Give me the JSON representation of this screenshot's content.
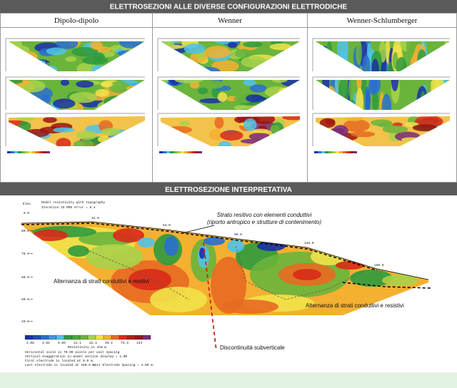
{
  "header": {
    "title": "ELETTROSEZIONI ALLE DIVERSE CONFIGURAZIONI ELETTRODICHE",
    "columns": [
      "Dipolo-dipolo",
      "Wenner",
      "Wenner-Schlumberger"
    ]
  },
  "section": {
    "title": "ELETTROSEZIONE INTERPRETATIVA",
    "plot_title": "Model resistivity with topography",
    "iteration": "Iteration 15 RMS error = 8.4",
    "y_label": "Elev.",
    "elevations": [
      "80.0",
      "70.0",
      "60.0",
      "50.0",
      "40.0"
    ],
    "positions": [
      "0.0",
      "32.0",
      "64.0",
      "96.0",
      "128.0",
      "160.0"
    ],
    "annotations": [
      "Strato resitivo con elementi conduttivi",
      "(riporto antropico e strutture di contenimento)",
      "Alternanza di strati conduttivi e resitivi",
      "Alternanza di strati conduttivi e resistivi",
      "Discontinuità subverticale"
    ],
    "legend": {
      "values": [
        "2.08",
        "3.65",
        "6.66",
        "12.1",
        "22.1",
        "40.2",
        "73.3",
        "134"
      ],
      "label": "Resistivity in ohm.m"
    },
    "notes": [
      "Horizontal scale is 70.00 pixels per unit spacing",
      "Vertical exaggeration in model section display = 1.00",
      "First electrode is located at 0.0 m.",
      "Last electrode is located at 160.0 m.",
      "Unit Electrode Spacing = 4.00 m."
    ]
  }
}
